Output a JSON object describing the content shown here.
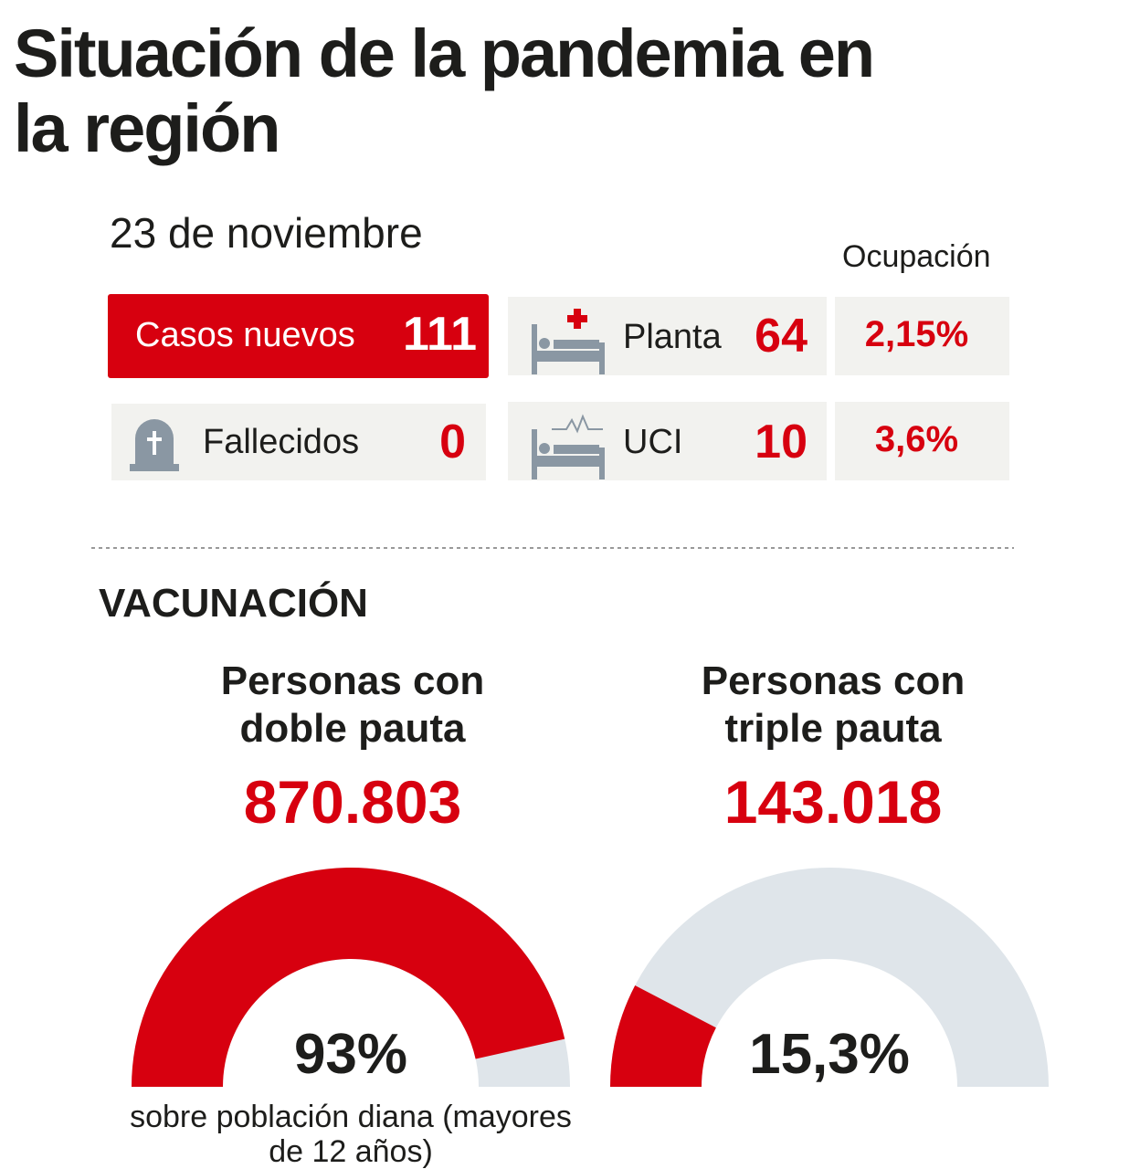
{
  "header": {
    "title": "Situación de la pandemia en la región",
    "date": "23 de noviembre",
    "occupancy_header": "Ocupación"
  },
  "cases": {
    "label": "Casos nuevos",
    "value": 111
  },
  "deaths": {
    "label": "Fallecidos",
    "value": 0
  },
  "hospital": [
    {
      "label": "Planta",
      "value": 64,
      "occupancy": "2,15%"
    },
    {
      "label": "UCI",
      "value": 10,
      "occupancy": "3,6%"
    }
  ],
  "vaccination": {
    "title": "VACUNACIÓN",
    "gauges": [
      {
        "title": "Personas con doble pauta",
        "count": "870.803",
        "percent": {
          "value": 93,
          "label": "93%"
        }
      },
      {
        "title": "Personas con triple pauta",
        "count": "143.018",
        "percent": {
          "value": 15.3,
          "label": "15,3%"
        }
      }
    ],
    "note": "sobre población diana (mayores de 12 años)"
  }
}
